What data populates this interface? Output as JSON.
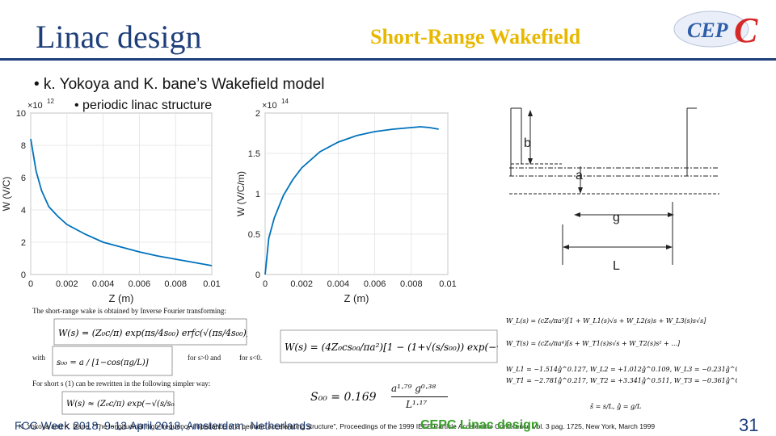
{
  "header": {
    "title": "Linac design",
    "subtitle": "Short-Range Wakefield",
    "logo_text": "CEPC"
  },
  "bullets": [
    "• k. Yokoya and K. bane’s Wakefield model",
    "• periodic linac structure"
  ],
  "chart_left": {
    "type": "line",
    "ylabel": "W (V/C)",
    "xlabel": "",
    "exponent": "×10",
    "exponent_power": "12",
    "x_ticks": [
      "0",
      "0.002",
      "0.004",
      "0.006",
      "0.008",
      "0.01"
    ],
    "y_ticks": [
      "0",
      "2",
      "4",
      "6",
      "8",
      "10"
    ],
    "xlim": [
      0,
      0.01
    ],
    "ylim": [
      0,
      10
    ],
    "x": [
      0.0,
      0.0003,
      0.0006,
      0.001,
      0.0015,
      0.002,
      0.003,
      0.004,
      0.005,
      0.006,
      0.007,
      0.008,
      0.009,
      0.01
    ],
    "y": [
      8.4,
      6.4,
      5.2,
      4.2,
      3.6,
      3.1,
      2.5,
      2.0,
      1.7,
      1.4,
      1.15,
      0.95,
      0.75,
      0.55
    ]
  },
  "chart_right": {
    "type": "line",
    "ylabel": "W (V/C/m)",
    "xlabel": "Z (m)",
    "exponent": "×10",
    "exponent_power": "14",
    "x_ticks": [
      "0",
      "0.002",
      "0.004",
      "0.006",
      "0.008",
      "0.01"
    ],
    "y_ticks": [
      "0",
      "0.5",
      "1",
      "1.5",
      "2"
    ],
    "xlim": [
      0,
      0.01
    ],
    "ylim": [
      0,
      2
    ],
    "x": [
      0.0,
      0.0002,
      0.0005,
      0.001,
      0.0015,
      0.002,
      0.003,
      0.004,
      0.005,
      0.006,
      0.007,
      0.008,
      0.0085,
      0.009,
      0.0095
    ],
    "y": [
      0.0,
      0.45,
      0.7,
      0.98,
      1.17,
      1.32,
      1.52,
      1.64,
      1.72,
      1.77,
      1.8,
      1.82,
      1.83,
      1.82,
      1.8
    ]
  },
  "left_chart_xlabel": "Z (m)",
  "geometry_labels": {
    "b": "b",
    "a": "a",
    "g": "g",
    "L": "L"
  },
  "formulas": {
    "intro": "The short-range wake is obtained by Inverse Fourier transforming:",
    "with": "with",
    "cond1": "for s>0 and",
    "cond2": "for s<0.",
    "short_s": "For short s (1) can be rewritten in the following simpler way:",
    "s00": "S₀₀ = 0.169",
    "s00_num": "a¹·⁷⁹ g⁰·³⁸",
    "s00_den": "L¹·¹⁷"
  },
  "footer": {
    "event": "FCC Week 2018, 9-13 April 2018, Amsterdam, Netherlands",
    "reference": "K. Yokoya and K. Bane, \"The longitudinal high-frequency impedance of a periodic accelerating structure\", Proceedings of the 1999 IEEE Particle Accelerator Conference Vol. 3 pag. 1725, New York, March 1999",
    "project": "CEPC Linac design",
    "page": "31"
  },
  "colors": {
    "title": "#1f3f7a",
    "subtitle": "#e8b800",
    "curve": "#0072bd",
    "footer_green": "#3aa02a"
  }
}
